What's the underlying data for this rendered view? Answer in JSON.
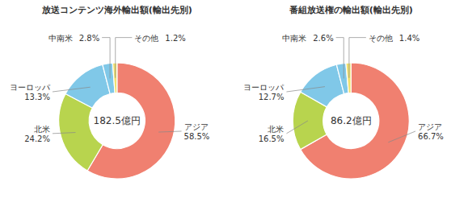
{
  "chart_data": [
    {
      "type": "pie",
      "title": "放送コンテンツ海外輸出額(輸出先別)",
      "annotations": [
        "182.5億円"
      ],
      "categories": [
        "アジア",
        "北米",
        "ヨーロッパ",
        "中南米",
        "その他"
      ],
      "values": [
        58.5,
        24.2,
        13.3,
        2.8,
        1.2
      ],
      "value_labels": [
        "58.5%",
        "24.2%",
        "13.3%",
        "2.8%",
        "1.2%"
      ],
      "colors": [
        "#f08070",
        "#b8d44e",
        "#80c8e8",
        "#80c8e8",
        "#f0e070"
      ],
      "data_labels": true
    },
    {
      "type": "pie",
      "title": "番組放送権の輸出額(輸出先別)",
      "annotations": [
        "86.2億円"
      ],
      "categories": [
        "アジア",
        "北米",
        "ヨーロッパ",
        "中南米",
        "その他"
      ],
      "values": [
        66.7,
        16.5,
        12.7,
        2.6,
        1.4
      ],
      "value_labels": [
        "66.7%",
        "16.5%",
        "12.7%",
        "2.6%",
        "1.4%"
      ],
      "colors": [
        "#f08070",
        "#b8d44e",
        "#80c8e8",
        "#80c8e8",
        "#f0e070"
      ],
      "data_labels": true
    }
  ]
}
